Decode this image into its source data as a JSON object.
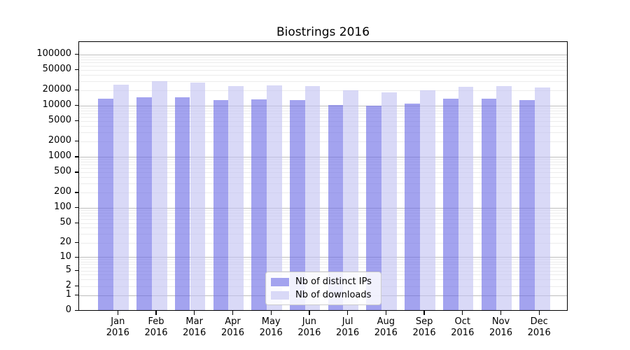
{
  "chart": {
    "title": "Biostrings 2016"
  },
  "chart_data": {
    "type": "bar",
    "title": "Biostrings 2016",
    "categories": [
      "Jan 2016",
      "Feb 2016",
      "Mar 2016",
      "Apr 2016",
      "May 2016",
      "Jun 2016",
      "Jul 2016",
      "Aug 2016",
      "Sep 2016",
      "Oct 2016",
      "Nov 2016",
      "Dec 2016"
    ],
    "months": [
      "Jan",
      "Feb",
      "Mar",
      "Apr",
      "May",
      "Jun",
      "Jul",
      "Aug",
      "Sep",
      "Oct",
      "Nov",
      "Dec"
    ],
    "year": "2016",
    "series": [
      {
        "name": "Nb of distinct IPs",
        "legend_color": "#a3a3ef",
        "fill": "rgba(107,107,229,0.62)",
        "values": [
          13600,
          14500,
          14500,
          12700,
          13000,
          12900,
          10200,
          9900,
          10900,
          13400,
          13600,
          12900
        ]
      },
      {
        "name": "Nb of downloads",
        "legend_color": "#d9d9f7",
        "fill": "rgba(194,194,242,0.62)",
        "values": [
          25500,
          29800,
          28200,
          23700,
          24400,
          23700,
          19600,
          18200,
          19800,
          23200,
          24100,
          22400
        ]
      }
    ],
    "y_scale": "log10(1+x)",
    "ylim": [
      0,
      100000
    ],
    "y_ticks": [
      0,
      1,
      2,
      5,
      10,
      20,
      50,
      100,
      200,
      500,
      1000,
      2000,
      5000,
      10000,
      20000,
      50000,
      100000
    ],
    "grid": {
      "orientation": "horizontal",
      "major_color": "#bdbdbd",
      "minor_color": "#ececec",
      "major_at": "powers of 10",
      "minor_at": "2-9 per decade"
    },
    "legend": {
      "position": "lower center",
      "items": [
        "Nb of distinct IPs",
        "Nb of downloads"
      ]
    }
  }
}
